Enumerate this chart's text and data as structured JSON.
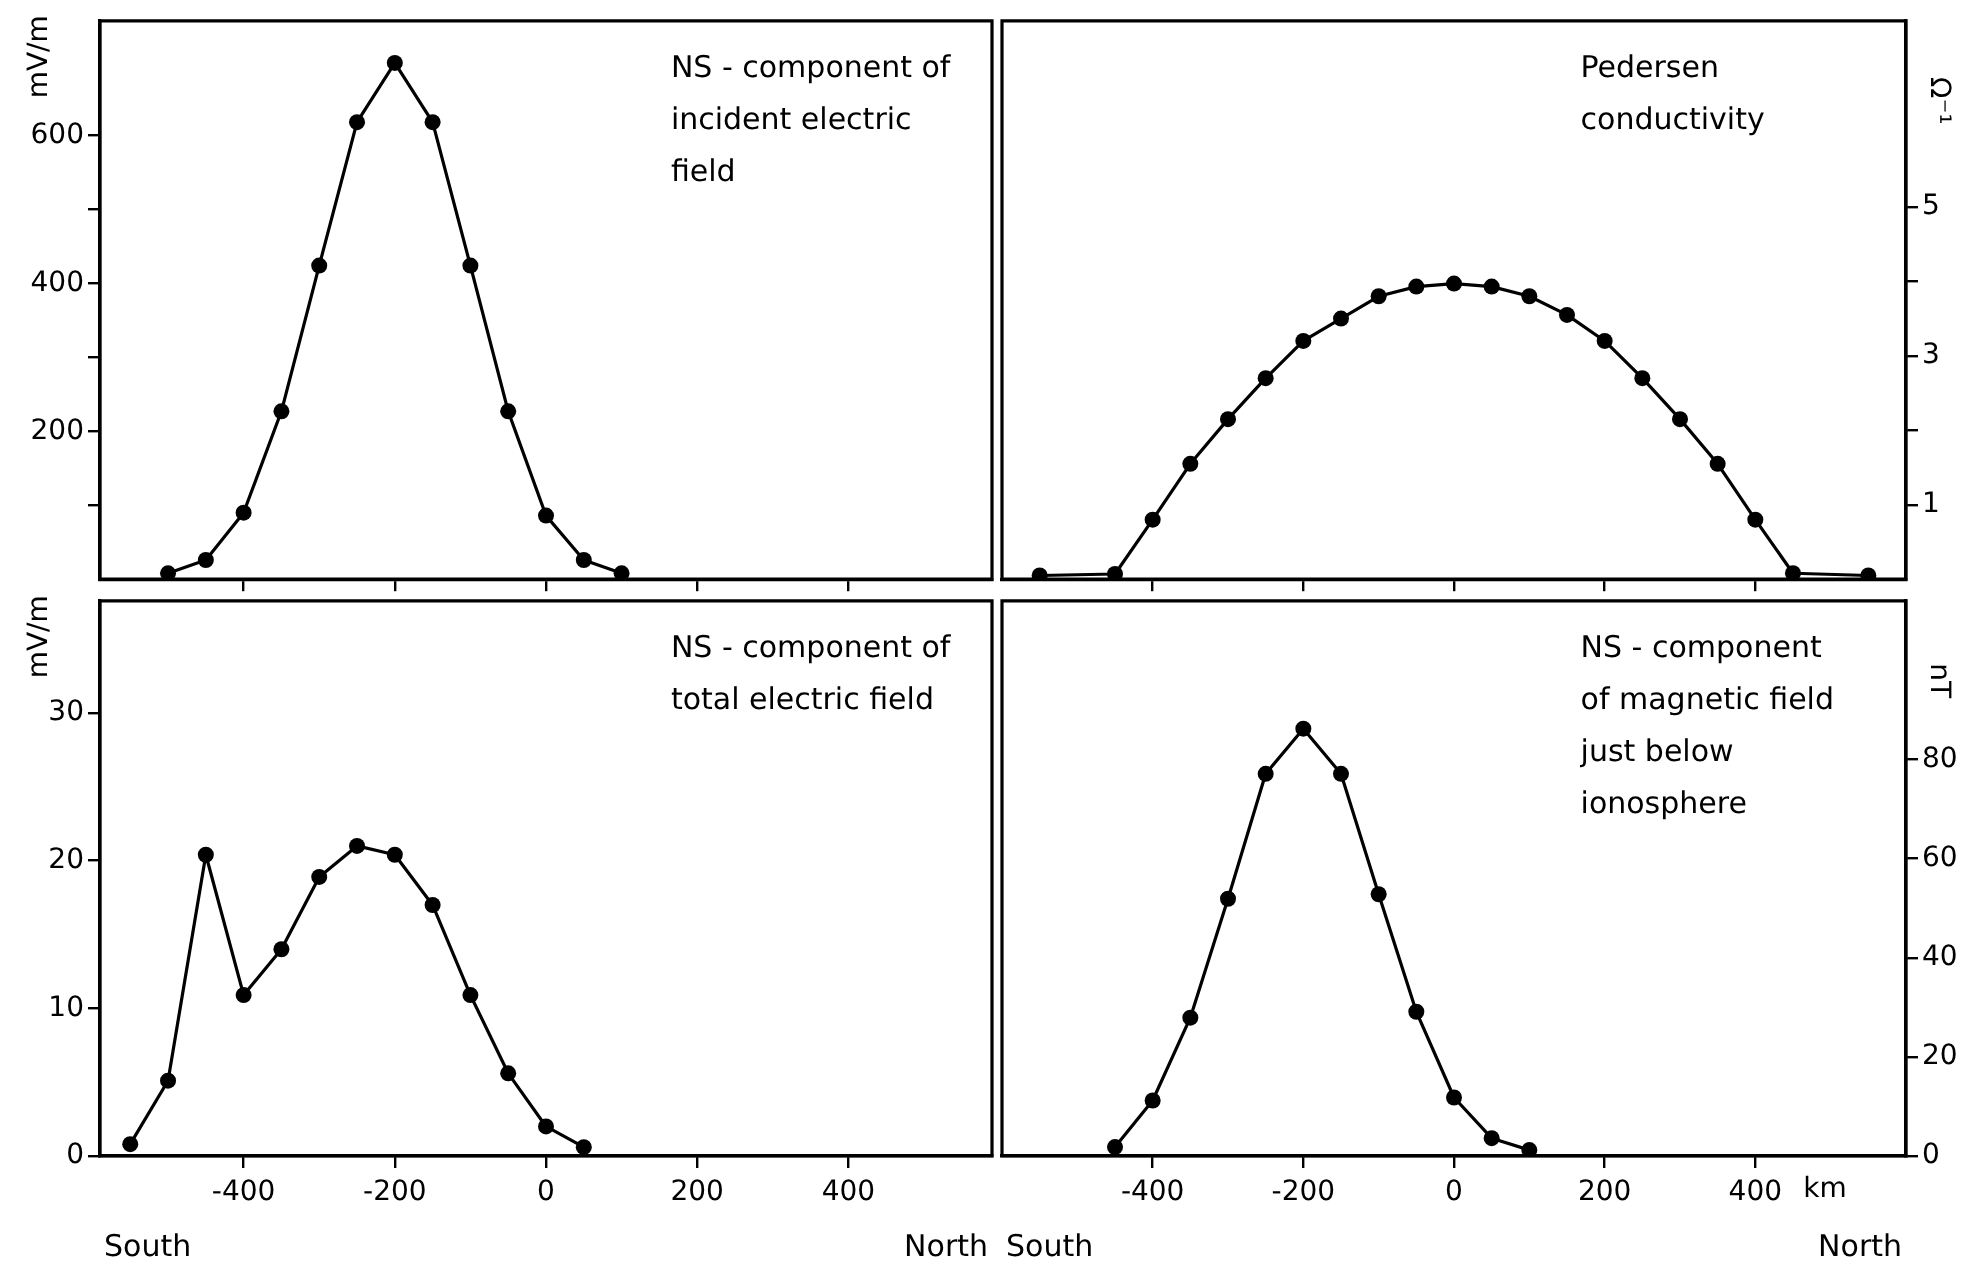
{
  "chart_data": [
    {
      "type": "line",
      "annotations": [
        "NS - component of\nincident electric\nfield"
      ],
      "ylabel": "mV/m",
      "x": [
        -500,
        -450,
        -400,
        -350,
        -300,
        -250,
        -200,
        -150,
        -100,
        -50,
        0,
        50,
        100
      ],
      "series": [
        {
          "color": "#000000",
          "values": [
            8,
            26,
            90,
            227,
            424,
            618,
            698,
            618,
            424,
            227,
            86,
            26,
            8
          ]
        }
      ],
      "marker": "circle",
      "line_style": "solid",
      "xlim": [
        -590,
        590
      ],
      "xticks": [
        -400,
        -200,
        0,
        200,
        400
      ],
      "ylim": [
        0,
        755
      ],
      "yticks": [
        {
          "value": 100,
          "label": null
        },
        200,
        {
          "value": 300,
          "label": null
        },
        400,
        {
          "value": 500,
          "label": null
        },
        600
      ],
      "tick_labels": "y",
      "grid": false,
      "legend": false
    },
    {
      "type": "line",
      "annotations": [
        "Pedersen\nconductivity"
      ],
      "y2label": "Ω⁻¹",
      "x": [
        -550,
        -450,
        -400,
        -350,
        -300,
        -250,
        -200,
        -150,
        -100,
        -50,
        0,
        50,
        100,
        150,
        200,
        250,
        300,
        350,
        400,
        450,
        550
      ],
      "series": [
        {
          "color": "#000000",
          "axis": "y2",
          "values": [
            0.05,
            0.07,
            0.8,
            1.55,
            2.15,
            2.7,
            3.2,
            3.5,
            3.8,
            3.93,
            3.97,
            3.93,
            3.8,
            3.55,
            3.2,
            2.7,
            2.15,
            1.55,
            0.8,
            0.08,
            0.05
          ]
        }
      ],
      "marker": "circle",
      "line_style": "solid",
      "xlim": [
        -600,
        600
      ],
      "xticks": [
        -400,
        -200,
        0,
        200,
        400
      ],
      "y2lim": [
        0,
        7.5
      ],
      "y2ticks": [
        1,
        {
          "value": 2,
          "label": null
        },
        3,
        {
          "value": 4,
          "label": null
        },
        5
      ],
      "tick_labels": "y",
      "grid": false,
      "legend": false
    },
    {
      "type": "line",
      "annotations": [
        "NS - component of\ntotal electric field",
        "South",
        "North"
      ],
      "ylabel": "mV/m",
      "x": [
        -550,
        -500,
        -450,
        -400,
        -350,
        -300,
        -250,
        -200,
        -150,
        -100,
        -50,
        0,
        50
      ],
      "series": [
        {
          "color": "#000000",
          "values": [
            0.8,
            5.1,
            20.4,
            10.9,
            14.0,
            18.9,
            21.0,
            20.4,
            17.0,
            10.9,
            5.6,
            2.0,
            0.6
          ]
        }
      ],
      "marker": "circle",
      "line_style": "solid",
      "xlim": [
        -590,
        590
      ],
      "xticks": [
        -400,
        -200,
        0,
        200,
        400
      ],
      "ylim": [
        0,
        37.6
      ],
      "yticks": [
        0,
        10,
        20,
        30
      ],
      "grid": false,
      "legend": false
    },
    {
      "type": "line",
      "annotations": [
        "NS - component\nof magnetic field\njust below\nionosphere",
        "South",
        "North"
      ],
      "y2label": "nT",
      "xlabel": "km",
      "x": [
        -450,
        -400,
        -350,
        -300,
        -250,
        -200,
        -150,
        -100,
        -50,
        0,
        50,
        100
      ],
      "series": [
        {
          "color": "#000000",
          "axis": "y2",
          "values": [
            1.8,
            11.2,
            27.9,
            51.9,
            77.1,
            86.2,
            77.1,
            52.8,
            29.1,
            11.8,
            3.6,
            1.2
          ]
        }
      ],
      "marker": "circle",
      "line_style": "solid",
      "xlim": [
        -600,
        600
      ],
      "xticks": [
        -400,
        -200,
        0,
        200,
        400
      ],
      "y2lim": [
        0,
        112
      ],
      "y2ticks": [
        0,
        20,
        40,
        60,
        80
      ],
      "grid": false,
      "legend": false
    }
  ]
}
